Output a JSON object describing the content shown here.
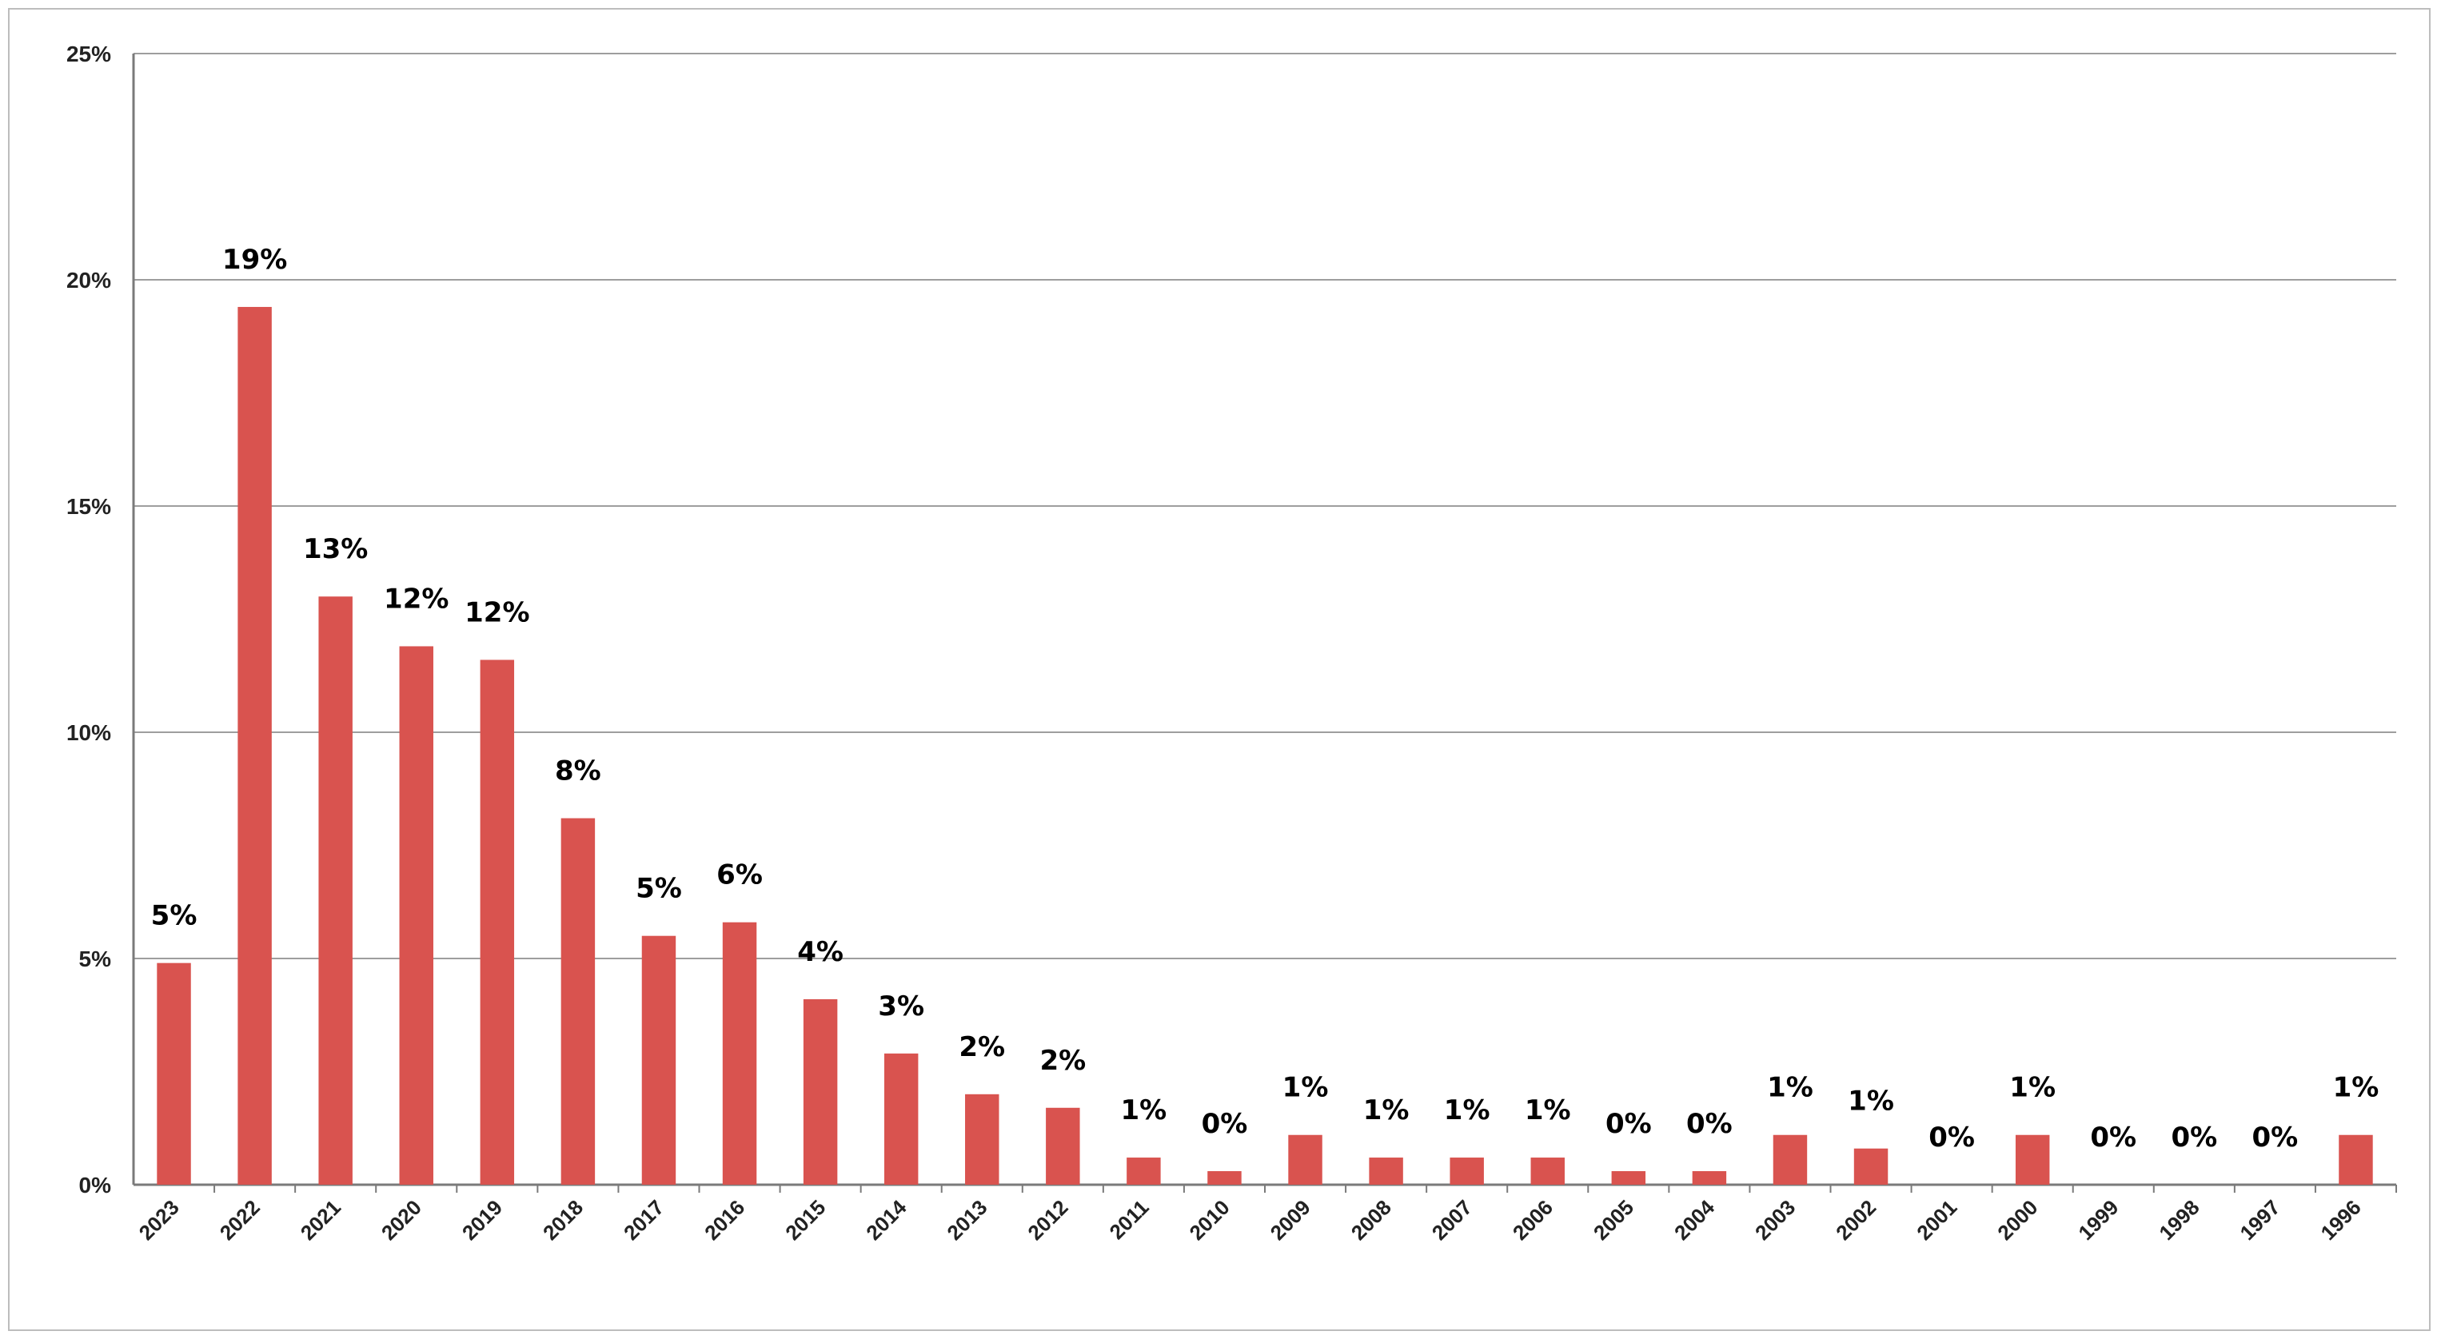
{
  "chart_data": {
    "type": "bar",
    "title": "",
    "xlabel": "",
    "ylabel": "",
    "ylim": [
      0,
      25
    ],
    "y_ticks": [
      "0%",
      "5%",
      "10%",
      "15%",
      "20%",
      "25%"
    ],
    "y_tick_values": [
      0,
      5,
      10,
      15,
      20,
      25
    ],
    "grid": true,
    "legend": "none",
    "bar_color": "#d9534f",
    "categories": [
      "2023",
      "2022",
      "2021",
      "2020",
      "2019",
      "2018",
      "2017",
      "2016",
      "2015",
      "2014",
      "2013",
      "2012",
      "2011",
      "2010",
      "2009",
      "2008",
      "2007",
      "2006",
      "2005",
      "2004",
      "2003",
      "2002",
      "2001",
      "2000",
      "1999",
      "1998",
      "1997",
      "1996"
    ],
    "values": [
      4.9,
      19.4,
      13.0,
      11.9,
      11.6,
      8.1,
      5.5,
      5.8,
      4.1,
      2.9,
      2.0,
      1.7,
      0.6,
      0.3,
      1.1,
      0.6,
      0.6,
      0.6,
      0.3,
      0.3,
      1.1,
      0.8,
      0.0,
      1.1,
      0.0,
      0.0,
      0.0,
      1.1
    ],
    "data_labels": [
      "5%",
      "19%",
      "13%",
      "12%",
      "12%",
      "8%",
      "5%",
      "6%",
      "4%",
      "3%",
      "2%",
      "2%",
      "1%",
      "0%",
      "1%",
      "1%",
      "1%",
      "1%",
      "0%",
      "0%",
      "1%",
      "1%",
      "0%",
      "1%",
      "0%",
      "0%",
      "0%",
      "1%"
    ]
  }
}
